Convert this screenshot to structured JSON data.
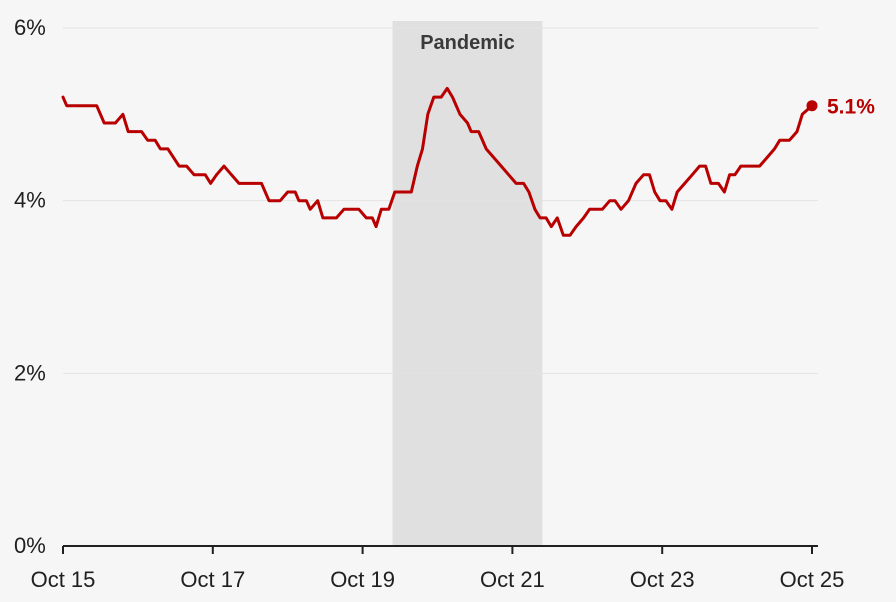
{
  "chart_data": {
    "type": "line",
    "xlim": [
      2015.75,
      2025.75
    ],
    "ylim": [
      0,
      6
    ],
    "y_ticks": [
      {
        "value": 0,
        "label": "0%"
      },
      {
        "value": 2,
        "label": "2%"
      },
      {
        "value": 4,
        "label": "4%"
      },
      {
        "value": 6,
        "label": "6%"
      }
    ],
    "x_ticks": [
      {
        "value": 2015.75,
        "label": "Oct 15"
      },
      {
        "value": 2017.75,
        "label": "Oct 17"
      },
      {
        "value": 2019.75,
        "label": "Oct 19"
      },
      {
        "value": 2021.75,
        "label": "Oct 21"
      },
      {
        "value": 2023.75,
        "label": "Oct 23"
      },
      {
        "value": 2025.75,
        "label": "Oct 25"
      }
    ],
    "grid": true,
    "shaded_region": {
      "start": 2020.15,
      "end": 2022.15,
      "label": "Pandemic"
    },
    "series": [
      {
        "color": "#b80000",
        "end_label": "5.1%",
        "points": [
          [
            2015.75,
            5.2
          ],
          [
            2015.8,
            5.1
          ],
          [
            2015.9,
            5.1
          ],
          [
            2016.0,
            5.1
          ],
          [
            2016.2,
            5.1
          ],
          [
            2016.3,
            4.9
          ],
          [
            2016.45,
            4.9
          ],
          [
            2016.55,
            5.0
          ],
          [
            2016.62,
            4.8
          ],
          [
            2016.8,
            4.8
          ],
          [
            2016.88,
            4.7
          ],
          [
            2016.98,
            4.7
          ],
          [
            2017.05,
            4.6
          ],
          [
            2017.15,
            4.6
          ],
          [
            2017.3,
            4.4
          ],
          [
            2017.4,
            4.4
          ],
          [
            2017.5,
            4.3
          ],
          [
            2017.65,
            4.3
          ],
          [
            2017.72,
            4.2
          ],
          [
            2017.8,
            4.3
          ],
          [
            2017.9,
            4.4
          ],
          [
            2018.0,
            4.3
          ],
          [
            2018.1,
            4.2
          ],
          [
            2018.3,
            4.2
          ],
          [
            2018.4,
            4.2
          ],
          [
            2018.5,
            4.0
          ],
          [
            2018.65,
            4.0
          ],
          [
            2018.75,
            4.1
          ],
          [
            2018.85,
            4.1
          ],
          [
            2018.9,
            4.0
          ],
          [
            2019.0,
            4.0
          ],
          [
            2019.05,
            3.9
          ],
          [
            2019.15,
            4.0
          ],
          [
            2019.22,
            3.8
          ],
          [
            2019.4,
            3.8
          ],
          [
            2019.5,
            3.9
          ],
          [
            2019.6,
            3.9
          ],
          [
            2019.7,
            3.9
          ],
          [
            2019.8,
            3.8
          ],
          [
            2019.88,
            3.8
          ],
          [
            2019.93,
            3.7
          ],
          [
            2020.0,
            3.9
          ],
          [
            2020.1,
            3.9
          ],
          [
            2020.18,
            4.1
          ],
          [
            2020.3,
            4.1
          ],
          [
            2020.4,
            4.1
          ],
          [
            2020.48,
            4.4
          ],
          [
            2020.55,
            4.6
          ],
          [
            2020.62,
            5.0
          ],
          [
            2020.7,
            5.2
          ],
          [
            2020.8,
            5.2
          ],
          [
            2020.88,
            5.3
          ],
          [
            2020.95,
            5.2
          ],
          [
            2021.05,
            5.0
          ],
          [
            2021.15,
            4.9
          ],
          [
            2021.2,
            4.8
          ],
          [
            2021.3,
            4.8
          ],
          [
            2021.4,
            4.6
          ],
          [
            2021.5,
            4.5
          ],
          [
            2021.6,
            4.4
          ],
          [
            2021.7,
            4.3
          ],
          [
            2021.8,
            4.2
          ],
          [
            2021.9,
            4.2
          ],
          [
            2021.97,
            4.1
          ],
          [
            2022.05,
            3.9
          ],
          [
            2022.12,
            3.8
          ],
          [
            2022.2,
            3.8
          ],
          [
            2022.27,
            3.7
          ],
          [
            2022.35,
            3.8
          ],
          [
            2022.43,
            3.6
          ],
          [
            2022.52,
            3.6
          ],
          [
            2022.6,
            3.7
          ],
          [
            2022.7,
            3.8
          ],
          [
            2022.78,
            3.9
          ],
          [
            2022.88,
            3.9
          ],
          [
            2022.95,
            3.9
          ],
          [
            2023.05,
            4.0
          ],
          [
            2023.12,
            4.0
          ],
          [
            2023.2,
            3.9
          ],
          [
            2023.3,
            4.0
          ],
          [
            2023.4,
            4.2
          ],
          [
            2023.5,
            4.3
          ],
          [
            2023.58,
            4.3
          ],
          [
            2023.65,
            4.1
          ],
          [
            2023.72,
            4.0
          ],
          [
            2023.8,
            4.0
          ],
          [
            2023.88,
            3.9
          ],
          [
            2023.95,
            4.1
          ],
          [
            2024.05,
            4.2
          ],
          [
            2024.15,
            4.3
          ],
          [
            2024.25,
            4.4
          ],
          [
            2024.33,
            4.4
          ],
          [
            2024.4,
            4.2
          ],
          [
            2024.5,
            4.2
          ],
          [
            2024.58,
            4.1
          ],
          [
            2024.65,
            4.3
          ],
          [
            2024.72,
            4.3
          ],
          [
            2024.8,
            4.4
          ],
          [
            2024.95,
            4.4
          ],
          [
            2025.05,
            4.4
          ],
          [
            2025.15,
            4.5
          ],
          [
            2025.25,
            4.6
          ],
          [
            2025.32,
            4.7
          ],
          [
            2025.45,
            4.7
          ],
          [
            2025.55,
            4.8
          ],
          [
            2025.62,
            5.0
          ],
          [
            2025.75,
            5.1
          ]
        ]
      }
    ]
  }
}
